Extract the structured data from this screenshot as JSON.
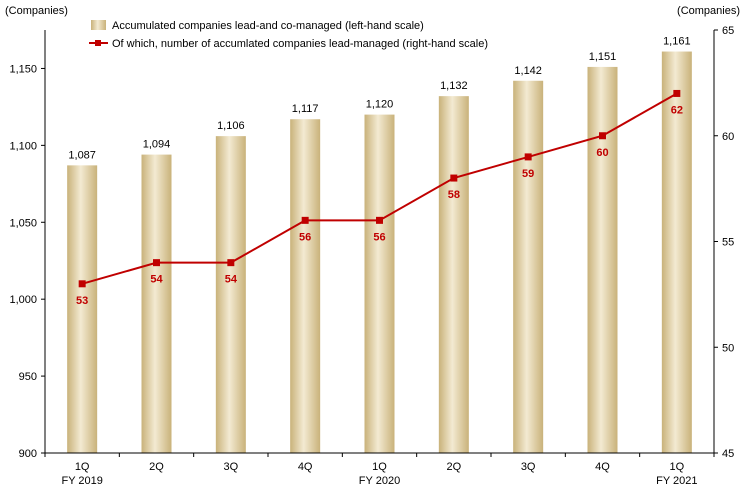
{
  "chart_data": {
    "type": "bar+line",
    "left_axis_unit": "(Companies)",
    "right_axis_unit": "(Companies)",
    "categories": [
      "1Q",
      "2Q",
      "3Q",
      "4Q",
      "1Q",
      "2Q",
      "3Q",
      "4Q",
      "1Q"
    ],
    "period_labels": [
      "FY 2019",
      "",
      "",
      "",
      "FY 2020",
      "",
      "",
      "",
      "FY 2021"
    ],
    "series": [
      {
        "name": "Accumulated companies lead-and co-managed (left-hand scale)",
        "type": "bar",
        "axis": "left",
        "values": [
          1087,
          1094,
          1106,
          1117,
          1120,
          1132,
          1142,
          1151,
          1161
        ],
        "labels": [
          "1,087",
          "1,094",
          "1,106",
          "1,117",
          "1,120",
          "1,132",
          "1,142",
          "1,151",
          "1,161"
        ],
        "color": "#d9c79a"
      },
      {
        "name": "Of which, number of accumlated companies lead-managed (right-hand scale)",
        "type": "line",
        "axis": "right",
        "values": [
          53,
          54,
          54,
          56,
          56,
          58,
          59,
          60,
          62
        ],
        "labels": [
          "53",
          "54",
          "54",
          "56",
          "56",
          "58",
          "59",
          "60",
          "62"
        ],
        "color": "#c00000"
      }
    ],
    "left_axis": {
      "min": 900,
      "max": 1150,
      "ticks": [
        900,
        950,
        "1,000",
        "1,050",
        "1,100",
        "1,150"
      ],
      "tick_values": [
        900,
        950,
        1000,
        1050,
        1100,
        1150
      ]
    },
    "right_axis": {
      "min": 45,
      "max": 65,
      "ticks": [
        45,
        50,
        55,
        60,
        65
      ]
    },
    "grid": false,
    "legend": "top-left"
  }
}
